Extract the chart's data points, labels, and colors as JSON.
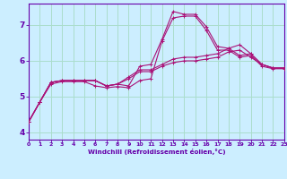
{
  "bg_color": "#cceeff",
  "line_color": "#aa1177",
  "grid_color": "#aaddcc",
  "axis_color": "#6600aa",
  "xlabel": "Windchill (Refroidissement éolien,°C)",
  "xlim": [
    0,
    23
  ],
  "ylim": [
    3.8,
    7.6
  ],
  "yticks": [
    4,
    5,
    6,
    7
  ],
  "xticks": [
    0,
    1,
    2,
    3,
    4,
    5,
    6,
    7,
    8,
    9,
    10,
    11,
    12,
    13,
    14,
    15,
    16,
    17,
    18,
    19,
    20,
    21,
    22,
    23
  ],
  "series": [
    [
      4.3,
      4.85,
      5.4,
      5.45,
      5.45,
      5.45,
      5.45,
      5.3,
      5.35,
      5.3,
      5.85,
      5.9,
      6.6,
      7.38,
      7.3,
      7.3,
      6.95,
      6.4,
      6.35,
      6.15,
      6.2,
      5.9,
      5.8,
      5.8
    ],
    [
      4.3,
      4.85,
      5.4,
      5.45,
      5.45,
      5.45,
      5.45,
      5.3,
      5.35,
      5.55,
      5.75,
      5.75,
      5.9,
      6.05,
      6.1,
      6.1,
      6.15,
      6.2,
      6.35,
      6.45,
      6.2,
      5.9,
      5.8,
      5.8
    ],
    [
      4.3,
      4.85,
      5.4,
      5.45,
      5.45,
      5.45,
      5.45,
      5.3,
      5.35,
      5.5,
      5.7,
      5.7,
      5.85,
      5.95,
      6.0,
      6.0,
      6.05,
      6.1,
      6.25,
      6.3,
      6.1,
      5.9,
      5.8,
      5.8
    ],
    [
      4.3,
      4.85,
      5.35,
      5.42,
      5.42,
      5.42,
      5.3,
      5.25,
      5.28,
      5.25,
      5.45,
      5.5,
      6.55,
      7.2,
      7.25,
      7.25,
      6.85,
      6.3,
      6.3,
      6.1,
      6.15,
      5.85,
      5.78,
      5.78
    ]
  ]
}
